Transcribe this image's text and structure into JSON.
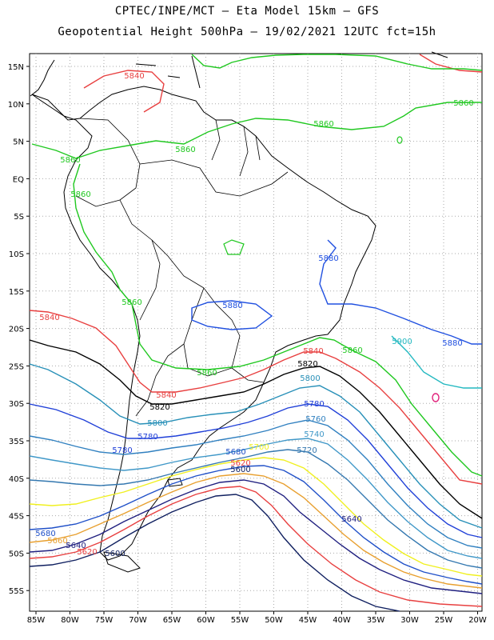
{
  "header": {
    "line1": "CPTEC/INPE/MCT –  Eta Model 15km – GFS",
    "line2": "Geopotential Height 500hPa – 19/02/2021 12UTC fct=15h"
  },
  "axes": {
    "lat_labels": [
      "15N",
      "10N",
      "5N",
      "EQ",
      "5S",
      "10S",
      "15S",
      "20S",
      "25S",
      "30S",
      "35S",
      "40S",
      "45S",
      "50S",
      "55S"
    ],
    "lon_labels": [
      "85W",
      "80W",
      "75W",
      "70W",
      "65W",
      "60W",
      "55W",
      "50W",
      "45W",
      "40W",
      "35W",
      "30W",
      "25W",
      "20W"
    ]
  },
  "contour_labels": {
    "c5840_nw": "5840",
    "c5860_ne": "5860",
    "c5860_n": "5860",
    "c5860_n2": "5860",
    "c5860_w": "5860",
    "c5860_w2": "5860",
    "c5880_e": "5880",
    "c5880_c": "5880",
    "c5860_c": "5860",
    "c5840_w": "5840",
    "c5840_s": "5840",
    "c5860_se": "5860",
    "c5840_se": "5840",
    "c5900": "5900",
    "c5880_se": "5880",
    "c5820_a": "5820",
    "c5820_b": "5820",
    "c5800_a": "5800",
    "c5800_b": "5800",
    "c5780_a": "5780",
    "c5780_b": "5780",
    "c5780_c": "5780",
    "c5760": "5760",
    "c5740": "5740",
    "c5720": "5720",
    "c5700": "5700",
    "c5680_a": "5680",
    "c5680_b": "5680",
    "c5660": "5660",
    "c5640_a": "5640",
    "c5640_b": "5640",
    "c5620_a": "5620",
    "c5620_b": "5620",
    "c5600_a": "5600",
    "c5600_b": "5600"
  },
  "colors": {
    "c5900": "#22b8c0",
    "c5880": "#2050e0",
    "c5860": "#20c820",
    "c5840": "#e84040",
    "c5820": "#000000",
    "c5800": "#2890b8",
    "c5780": "#2040d8",
    "c5760": "#3080c0",
    "c5740": "#4098c8",
    "c5720": "#3478b0",
    "c5700": "#f0f020",
    "c5680": "#2050c8",
    "c5660": "#e8a030",
    "c5640": "#202080",
    "c5620": "#e84040",
    "c5600": "#102060"
  }
}
